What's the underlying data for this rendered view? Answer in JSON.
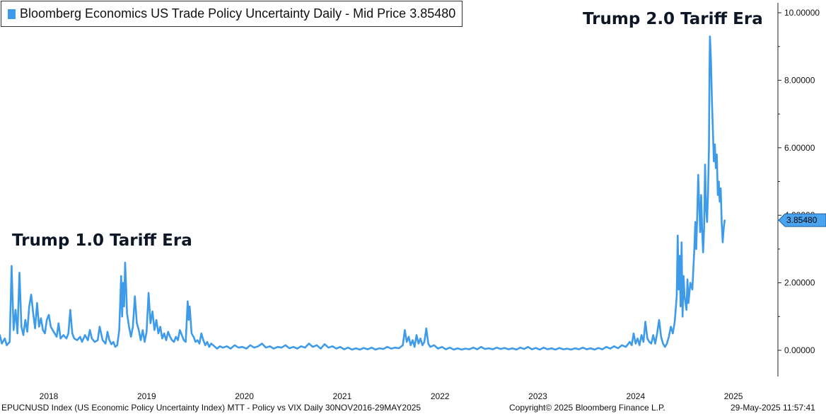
{
  "legend": {
    "label": "Bloomberg Economics US Trade Policy Uncertainty Daily - Mid Price 3.85480",
    "swatch_color": "#3d9be9"
  },
  "annotations": {
    "trump1": "Trump 1.0 Tariff Era",
    "trump2": "Trump 2.0 Tariff Era"
  },
  "footer": {
    "left": "EPUCNUSD Index (US Economic Policy Uncertainty Index) MTT - Policy vs VIX  Daily 30NOV2016-29MAY2025",
    "center": "Copyright© 2025 Bloomberg Finance L.P.",
    "right": "29-May-2025 11:57:41"
  },
  "chart_data": {
    "type": "line",
    "series": [
      {
        "color": "#3d9be9",
        "last_value_label": "3.85480",
        "last_value": 3.8548,
        "points": [
          [
            2017.45,
            0.08
          ],
          [
            2017.48,
            0.15
          ],
          [
            2017.5,
            0.45
          ],
          [
            2017.52,
            0.2
          ],
          [
            2017.55,
            0.35
          ],
          [
            2017.57,
            0.15
          ],
          [
            2017.6,
            0.25
          ],
          [
            2017.62,
            2.5
          ],
          [
            2017.64,
            0.6
          ],
          [
            2017.66,
            1.2
          ],
          [
            2017.68,
            0.5
          ],
          [
            2017.7,
            2.3
          ],
          [
            2017.72,
            0.7
          ],
          [
            2017.74,
            0.45
          ],
          [
            2017.76,
            0.9
          ],
          [
            2017.78,
            0.55
          ],
          [
            2017.8,
            1.3
          ],
          [
            2017.82,
            1.65
          ],
          [
            2017.84,
            1.1
          ],
          [
            2017.86,
            0.65
          ],
          [
            2017.88,
            1.4
          ],
          [
            2017.9,
            0.7
          ],
          [
            2017.92,
            0.95
          ],
          [
            2017.94,
            0.6
          ],
          [
            2017.96,
            0.5
          ],
          [
            2017.98,
            0.9
          ],
          [
            2018.0,
            1.05
          ],
          [
            2018.02,
            0.7
          ],
          [
            2018.05,
            0.55
          ],
          [
            2018.08,
            0.4
          ],
          [
            2018.1,
            0.8
          ],
          [
            2018.12,
            0.35
          ],
          [
            2018.15,
            0.45
          ],
          [
            2018.18,
            0.35
          ],
          [
            2018.2,
            0.5
          ],
          [
            2018.22,
            1.2
          ],
          [
            2018.24,
            0.5
          ],
          [
            2018.26,
            0.35
          ],
          [
            2018.29,
            0.3
          ],
          [
            2018.32,
            0.4
          ],
          [
            2018.34,
            0.25
          ],
          [
            2018.37,
            0.45
          ],
          [
            2018.4,
            0.3
          ],
          [
            2018.42,
            0.6
          ],
          [
            2018.44,
            0.35
          ],
          [
            2018.47,
            0.25
          ],
          [
            2018.5,
            0.3
          ],
          [
            2018.52,
            0.7
          ],
          [
            2018.55,
            0.3
          ],
          [
            2018.58,
            0.2
          ],
          [
            2018.6,
            0.55
          ],
          [
            2018.62,
            0.3
          ],
          [
            2018.64,
            0.18
          ],
          [
            2018.66,
            0.25
          ],
          [
            2018.68,
            0.1
          ],
          [
            2018.7,
            0.15
          ],
          [
            2018.72,
            0.6
          ],
          [
            2018.74,
            2.2
          ],
          [
            2018.75,
            1.0
          ],
          [
            2018.76,
            2.0
          ],
          [
            2018.77,
            1.3
          ],
          [
            2018.78,
            2.6
          ],
          [
            2018.79,
            1.9
          ],
          [
            2018.8,
            1.1
          ],
          [
            2018.82,
            0.7
          ],
          [
            2018.84,
            0.4
          ],
          [
            2018.86,
            0.7
          ],
          [
            2018.88,
            1.6
          ],
          [
            2018.9,
            0.8
          ],
          [
            2018.92,
            0.6
          ],
          [
            2018.94,
            0.3
          ],
          [
            2018.96,
            0.6
          ],
          [
            2018.98,
            0.25
          ],
          [
            2019.0,
            0.55
          ],
          [
            2019.02,
            1.7
          ],
          [
            2019.04,
            0.8
          ],
          [
            2019.06,
            1.15
          ],
          [
            2019.08,
            0.6
          ],
          [
            2019.1,
            0.9
          ],
          [
            2019.12,
            0.5
          ],
          [
            2019.14,
            0.7
          ],
          [
            2019.16,
            0.35
          ],
          [
            2019.18,
            0.5
          ],
          [
            2019.2,
            0.3
          ],
          [
            2019.22,
            0.55
          ],
          [
            2019.24,
            0.4
          ],
          [
            2019.26,
            0.3
          ],
          [
            2019.28,
            0.25
          ],
          [
            2019.3,
            0.4
          ],
          [
            2019.32,
            0.3
          ],
          [
            2019.34,
            0.6
          ],
          [
            2019.36,
            0.45
          ],
          [
            2019.38,
            0.3
          ],
          [
            2019.4,
            0.25
          ],
          [
            2019.42,
            1.45
          ],
          [
            2019.43,
            0.9
          ],
          [
            2019.44,
            1.3
          ],
          [
            2019.46,
            0.5
          ],
          [
            2019.48,
            0.4
          ],
          [
            2019.5,
            0.25
          ],
          [
            2019.52,
            0.3
          ],
          [
            2019.54,
            0.2
          ],
          [
            2019.56,
            0.5
          ],
          [
            2019.58,
            0.3
          ],
          [
            2019.6,
            0.15
          ],
          [
            2019.62,
            0.25
          ],
          [
            2019.64,
            0.1
          ],
          [
            2019.66,
            0.2
          ],
          [
            2019.68,
            0.15
          ],
          [
            2019.7,
            0.1
          ],
          [
            2019.72,
            0.05
          ],
          [
            2019.75,
            0.12
          ],
          [
            2019.78,
            0.08
          ],
          [
            2019.82,
            0.12
          ],
          [
            2019.86,
            0.05
          ],
          [
            2019.9,
            0.15
          ],
          [
            2019.94,
            0.08
          ],
          [
            2019.98,
            0.1
          ],
          [
            2020.02,
            0.05
          ],
          [
            2020.06,
            0.15
          ],
          [
            2020.1,
            0.08
          ],
          [
            2020.14,
            0.12
          ],
          [
            2020.18,
            0.2
          ],
          [
            2020.22,
            0.08
          ],
          [
            2020.26,
            0.12
          ],
          [
            2020.3,
            0.05
          ],
          [
            2020.34,
            0.1
          ],
          [
            2020.38,
            0.08
          ],
          [
            2020.42,
            0.15
          ],
          [
            2020.46,
            0.06
          ],
          [
            2020.5,
            0.1
          ],
          [
            2020.54,
            0.05
          ],
          [
            2020.58,
            0.12
          ],
          [
            2020.62,
            0.08
          ],
          [
            2020.66,
            0.2
          ],
          [
            2020.7,
            0.1
          ],
          [
            2020.74,
            0.15
          ],
          [
            2020.78,
            0.05
          ],
          [
            2020.82,
            0.18
          ],
          [
            2020.86,
            0.08
          ],
          [
            2020.9,
            0.12
          ],
          [
            2020.94,
            0.05
          ],
          [
            2020.98,
            0.1
          ],
          [
            2021.02,
            0.03
          ],
          [
            2021.06,
            0.08
          ],
          [
            2021.1,
            0.02
          ],
          [
            2021.14,
            0.06
          ],
          [
            2021.18,
            0.02
          ],
          [
            2021.22,
            0.07
          ],
          [
            2021.26,
            0.03
          ],
          [
            2021.3,
            0.08
          ],
          [
            2021.34,
            0.02
          ],
          [
            2021.38,
            0.06
          ],
          [
            2021.42,
            0.04
          ],
          [
            2021.46,
            0.1
          ],
          [
            2021.5,
            0.05
          ],
          [
            2021.54,
            0.08
          ],
          [
            2021.58,
            0.06
          ],
          [
            2021.62,
            0.15
          ],
          [
            2021.64,
            0.6
          ],
          [
            2021.66,
            0.25
          ],
          [
            2021.68,
            0.4
          ],
          [
            2021.7,
            0.15
          ],
          [
            2021.72,
            0.3
          ],
          [
            2021.74,
            0.1
          ],
          [
            2021.76,
            0.45
          ],
          [
            2021.78,
            0.2
          ],
          [
            2021.8,
            0.35
          ],
          [
            2021.82,
            0.15
          ],
          [
            2021.84,
            0.25
          ],
          [
            2021.86,
            0.65
          ],
          [
            2021.88,
            0.2
          ],
          [
            2021.9,
            0.1
          ],
          [
            2021.94,
            0.15
          ],
          [
            2021.98,
            0.05
          ],
          [
            2022.02,
            0.1
          ],
          [
            2022.06,
            0.03
          ],
          [
            2022.1,
            0.08
          ],
          [
            2022.14,
            0.02
          ],
          [
            2022.18,
            0.06
          ],
          [
            2022.22,
            0.02
          ],
          [
            2022.26,
            0.05
          ],
          [
            2022.3,
            0.03
          ],
          [
            2022.34,
            0.08
          ],
          [
            2022.38,
            0.03
          ],
          [
            2022.42,
            0.1
          ],
          [
            2022.46,
            0.04
          ],
          [
            2022.5,
            0.06
          ],
          [
            2022.54,
            0.03
          ],
          [
            2022.58,
            0.08
          ],
          [
            2022.62,
            0.04
          ],
          [
            2022.66,
            0.07
          ],
          [
            2022.7,
            0.03
          ],
          [
            2022.74,
            0.06
          ],
          [
            2022.78,
            0.02
          ],
          [
            2022.82,
            0.08
          ],
          [
            2022.86,
            0.04
          ],
          [
            2022.9,
            0.1
          ],
          [
            2022.94,
            0.03
          ],
          [
            2022.98,
            0.07
          ],
          [
            2023.02,
            0.02
          ],
          [
            2023.06,
            0.08
          ],
          [
            2023.1,
            0.03
          ],
          [
            2023.14,
            0.06
          ],
          [
            2023.18,
            0.02
          ],
          [
            2023.22,
            0.07
          ],
          [
            2023.26,
            0.03
          ],
          [
            2023.3,
            0.05
          ],
          [
            2023.34,
            0.02
          ],
          [
            2023.38,
            0.06
          ],
          [
            2023.42,
            0.03
          ],
          [
            2023.46,
            0.08
          ],
          [
            2023.5,
            0.03
          ],
          [
            2023.54,
            0.06
          ],
          [
            2023.58,
            0.02
          ],
          [
            2023.62,
            0.07
          ],
          [
            2023.66,
            0.03
          ],
          [
            2023.7,
            0.1
          ],
          [
            2023.74,
            0.05
          ],
          [
            2023.78,
            0.12
          ],
          [
            2023.82,
            0.06
          ],
          [
            2023.86,
            0.15
          ],
          [
            2023.9,
            0.1
          ],
          [
            2023.94,
            0.25
          ],
          [
            2023.96,
            0.15
          ],
          [
            2023.98,
            0.5
          ],
          [
            2024.0,
            0.2
          ],
          [
            2024.02,
            0.35
          ],
          [
            2024.04,
            0.15
          ],
          [
            2024.06,
            0.45
          ],
          [
            2024.08,
            0.25
          ],
          [
            2024.1,
            0.85
          ],
          [
            2024.12,
            0.35
          ],
          [
            2024.14,
            0.25
          ],
          [
            2024.16,
            0.2
          ],
          [
            2024.18,
            0.45
          ],
          [
            2024.2,
            0.2
          ],
          [
            2024.22,
            0.5
          ],
          [
            2024.24,
            0.9
          ],
          [
            2024.26,
            0.4
          ],
          [
            2024.28,
            0.2
          ],
          [
            2024.3,
            0.1
          ],
          [
            2024.32,
            0.2
          ],
          [
            2024.34,
            0.4
          ],
          [
            2024.36,
            0.7
          ],
          [
            2024.38,
            0.5
          ],
          [
            2024.4,
            0.85
          ],
          [
            2024.42,
            1.6
          ],
          [
            2024.43,
            3.4
          ],
          [
            2024.44,
            1.8
          ],
          [
            2024.45,
            2.8
          ],
          [
            2024.46,
            1.3
          ],
          [
            2024.47,
            3.2
          ],
          [
            2024.48,
            1.0
          ],
          [
            2024.49,
            2.2
          ],
          [
            2024.5,
            1.6
          ],
          [
            2024.52,
            1.2
          ],
          [
            2024.53,
            2.1
          ],
          [
            2024.54,
            1.4
          ],
          [
            2024.56,
            2.0
          ],
          [
            2024.58,
            1.8
          ],
          [
            2024.6,
            3.0
          ],
          [
            2024.61,
            3.8
          ],
          [
            2024.62,
            3.0
          ],
          [
            2024.63,
            4.0
          ],
          [
            2024.64,
            5.2
          ],
          [
            2024.65,
            4.3
          ],
          [
            2024.66,
            3.5
          ],
          [
            2024.67,
            4.6
          ],
          [
            2024.68,
            3.6
          ],
          [
            2024.69,
            2.9
          ],
          [
            2024.7,
            3.6
          ],
          [
            2024.71,
            5.5
          ],
          [
            2024.72,
            4.2
          ],
          [
            2024.73,
            3.8
          ],
          [
            2024.74,
            4.6
          ],
          [
            2024.75,
            6.0
          ],
          [
            2024.755,
            8.2
          ],
          [
            2024.76,
            9.3
          ],
          [
            2024.77,
            8.6
          ],
          [
            2024.78,
            7.4
          ],
          [
            2024.79,
            6.5
          ],
          [
            2024.8,
            5.6
          ],
          [
            2024.81,
            6.1
          ],
          [
            2024.82,
            5.4
          ],
          [
            2024.83,
            5.8
          ],
          [
            2024.84,
            4.6
          ],
          [
            2024.85,
            5.0
          ],
          [
            2024.86,
            4.4
          ],
          [
            2024.87,
            4.8
          ],
          [
            2024.88,
            3.8
          ],
          [
            2024.89,
            3.2
          ],
          [
            2024.9,
            3.6
          ],
          [
            2024.91,
            3.85
          ]
        ]
      }
    ],
    "x_ticks": [
      "2018",
      "2019",
      "2020",
      "2021",
      "2022",
      "2023",
      "2024",
      "2025"
    ],
    "x_tick_values": [
      2018,
      2019,
      2020,
      2021,
      2022,
      2023,
      2024,
      2025
    ],
    "x_range": [
      2017.45,
      2024.91
    ],
    "y_ticks": [
      "0.00000",
      "2.00000",
      "4.00000",
      "6.00000",
      "8.00000",
      "10.00000"
    ],
    "y_tick_values": [
      0,
      2,
      4,
      6,
      8,
      10
    ],
    "y_range": [
      -0.8,
      10.2
    ],
    "grid": false,
    "legend_position": "top-left",
    "axis_side": "right"
  }
}
